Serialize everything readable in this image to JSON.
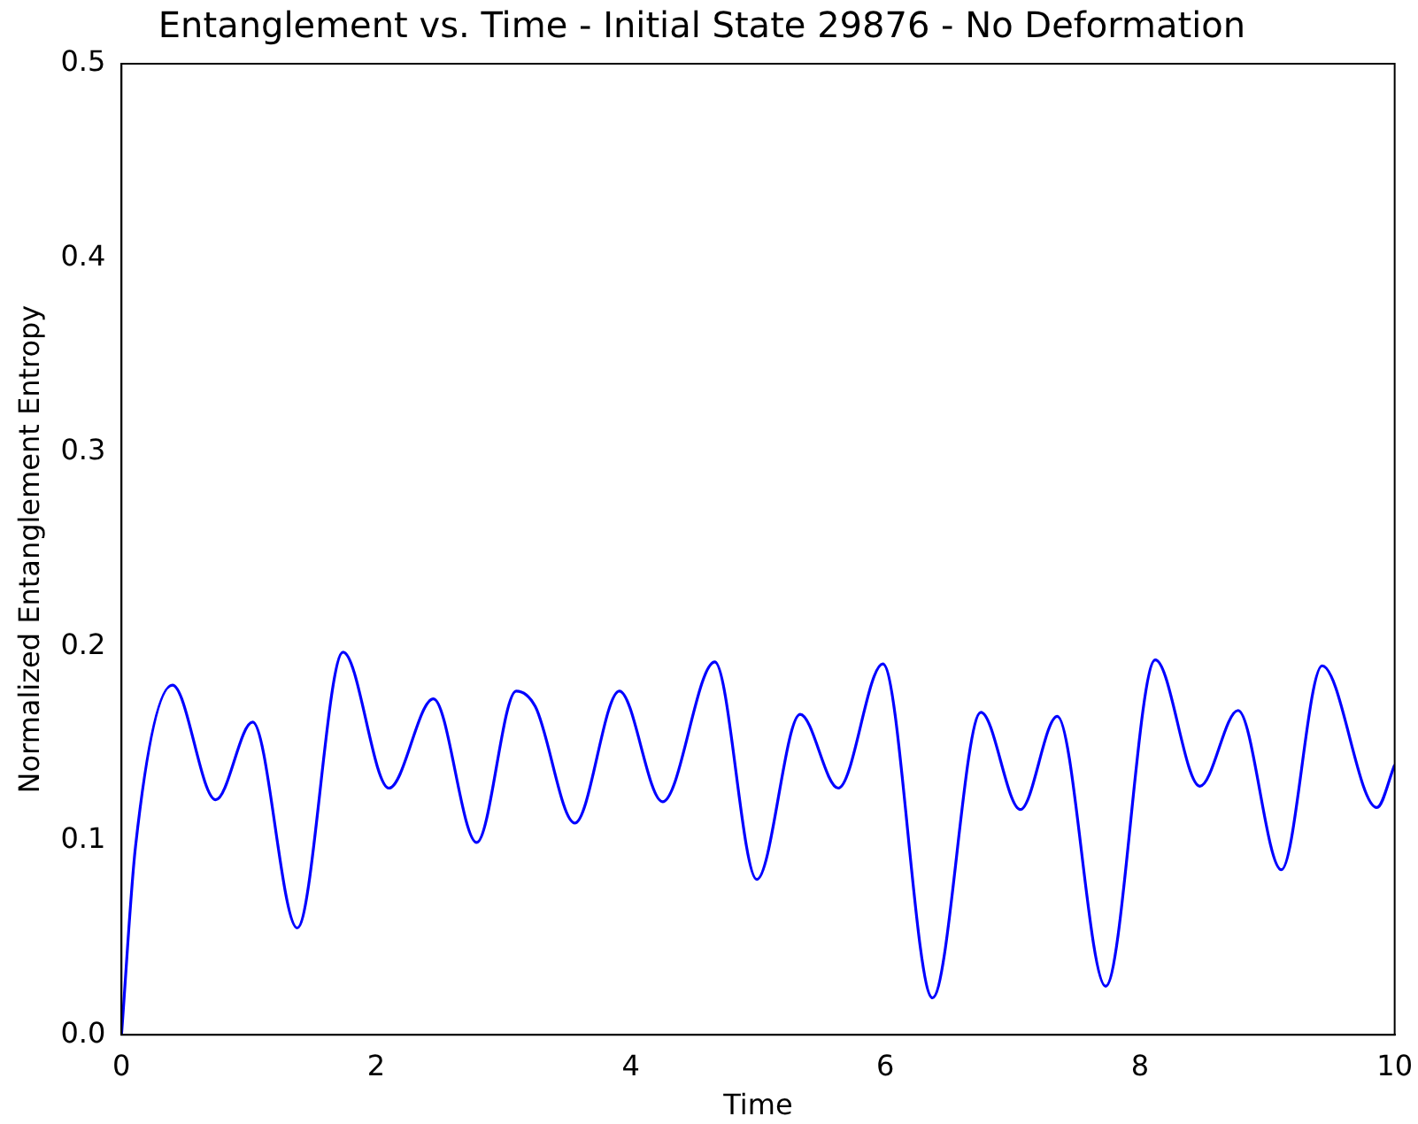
{
  "chart_data": {
    "type": "line",
    "title": "Entanglement vs. Time - Initial State 29876 - No Deformation",
    "xlabel": "Time",
    "ylabel": "Normalized Entanglement Entropy",
    "x": [
      0,
      0.11,
      0.4,
      0.74,
      1.03,
      1.38,
      1.74,
      2.1,
      2.45,
      2.79,
      3.1,
      3.25,
      3.56,
      3.91,
      4.25,
      4.66,
      4.99,
      5.33,
      5.63,
      5.98,
      6.37,
      6.75,
      7.06,
      7.35,
      7.73,
      8.12,
      8.47,
      8.77,
      9.11,
      9.43,
      9.86,
      10
    ],
    "series": [
      {
        "color": "#0000ff",
        "values": [
          0,
          0.097,
          0.18,
          0.121,
          0.161,
          0.055,
          0.197,
          0.127,
          0.173,
          0.099,
          0.177,
          0.169,
          0.109,
          0.177,
          0.12,
          0.192,
          0.08,
          0.165,
          0.127,
          0.191,
          0.019,
          0.166,
          0.116,
          0.164,
          0.025,
          0.193,
          0.128,
          0.167,
          0.085,
          0.19,
          0.117,
          0.139
        ]
      }
    ],
    "xlim": [
      0,
      10
    ],
    "xticks": [
      0,
      2,
      4,
      6,
      8,
      10
    ],
    "ylim": [
      0,
      0.5
    ],
    "yticks": [
      {
        "value": 0,
        "label": "0.0"
      },
      {
        "value": 0.1,
        "label": "0.1"
      },
      {
        "value": 0.2,
        "label": "0.2"
      },
      {
        "value": 0.3,
        "label": "0.3"
      },
      {
        "value": 0.4,
        "label": "0.4"
      },
      {
        "value": 0.5,
        "label": "0.5"
      }
    ],
    "grid": false,
    "legend": false,
    "marker": "none",
    "line_style": "solid"
  }
}
